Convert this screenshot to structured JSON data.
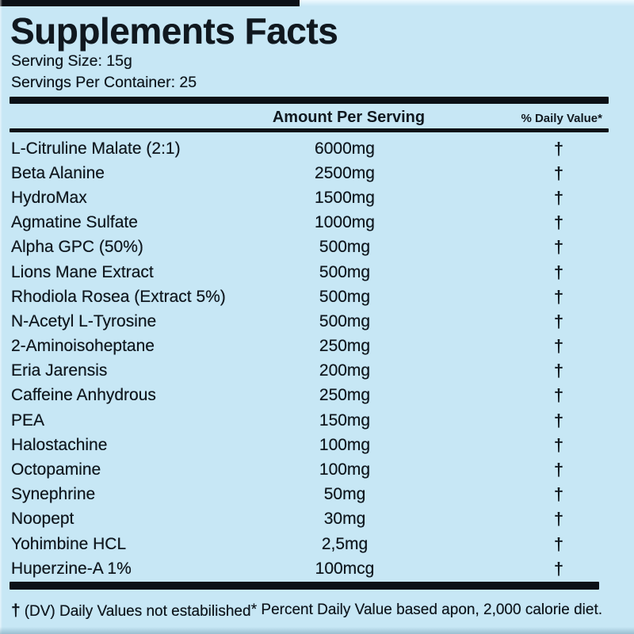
{
  "label": {
    "title": "Supplements Facts",
    "serving_size": "Serving Size: 15g",
    "servings_per_container": "Servings Per Container: 25",
    "columns": {
      "amount": "Amount Per Serving",
      "daily_value": "% Daily Value*"
    },
    "rows": [
      {
        "name": "L-Citruline Malate (2:1)",
        "amount": "6000mg",
        "daily_value": "†"
      },
      {
        "name": "Beta Alanine",
        "amount": "2500mg",
        "daily_value": "†"
      },
      {
        "name": "HydroMax",
        "amount": "1500mg",
        "daily_value": "†"
      },
      {
        "name": "Agmatine Sulfate",
        "amount": "1000mg",
        "daily_value": "†"
      },
      {
        "name": "Alpha GPC (50%)",
        "amount": "500mg",
        "daily_value": "†"
      },
      {
        "name": "Lions Mane Extract",
        "amount": "500mg",
        "daily_value": "†"
      },
      {
        "name": "Rhodiola Rosea (Extract 5%)",
        "amount": "500mg",
        "daily_value": "†"
      },
      {
        "name": "N-Acetyl L-Tyrosine",
        "amount": "500mg",
        "daily_value": "†"
      },
      {
        "name": "2-Aminoisoheptane",
        "amount": "250mg",
        "daily_value": "†"
      },
      {
        "name": "Eria Jarensis",
        "amount": "200mg",
        "daily_value": "†"
      },
      {
        "name": "Caffeine Anhydrous",
        "amount": "250mg",
        "daily_value": "†"
      },
      {
        "name": "PEA",
        "amount": "150mg",
        "daily_value": "†"
      },
      {
        "name": "Halostachine",
        "amount": "100mg",
        "daily_value": "†"
      },
      {
        "name": "Octopamine",
        "amount": "100mg",
        "daily_value": "†"
      },
      {
        "name": "Synephrine",
        "amount": "50mg",
        "daily_value": "†"
      },
      {
        "name": "Noopept",
        "amount": "30mg",
        "daily_value": "†"
      },
      {
        "name": "Yohimbine HCL",
        "amount": "2,5mg",
        "daily_value": "†"
      },
      {
        "name": "Huperzine-A 1%",
        "amount": "100mcg",
        "daily_value": "†"
      }
    ],
    "footnotes": {
      "dv_symbol": "†",
      "dv_text": "(DV) Daily Values not estabilished",
      "percent_text": "* Percent Daily Value based apon, 2,000 calorie diet."
    },
    "colors": {
      "background": "#c7e7f5",
      "text": "#10181f",
      "bar": "#0b1016"
    }
  }
}
